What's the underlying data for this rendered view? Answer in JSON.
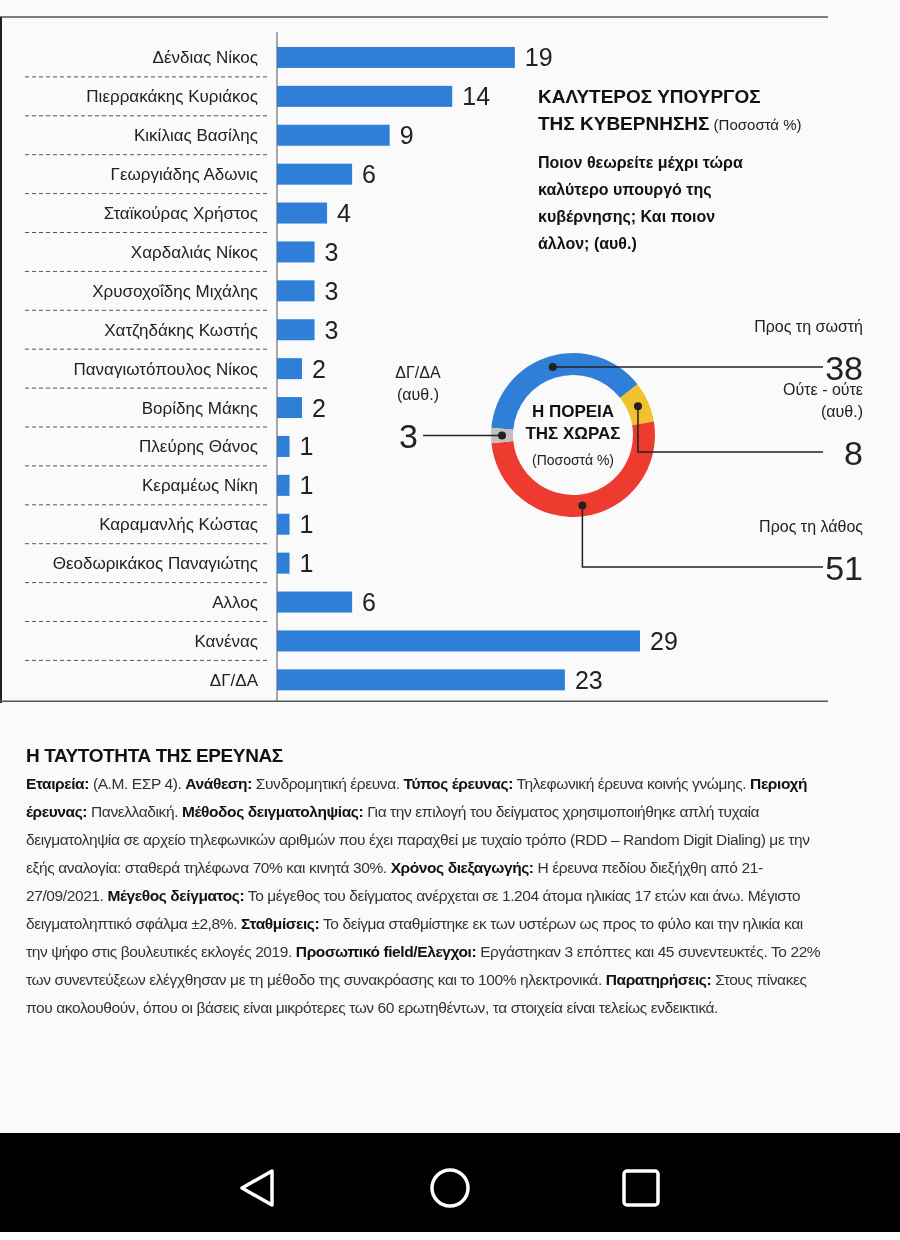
{
  "chart_data": [
    {
      "type": "bar",
      "orientation": "horizontal",
      "title": "ΚΑΛΥΤΕΡΟΣ ΥΠΟΥΡΓΟΣ ΤΗΣ ΚΥΒΕΡΝΗΣΗΣ (Ποσοστά %)",
      "annotations": [
        "Ποιον θεωρείτε μέχρι τώρα καλύτερο υπουργό της κυβέρνησης; Και ποιον άλλον; (αυθ.)"
      ],
      "categories": [
        "Δένδιας Νίκος",
        "Πιερρακάκης Κυριάκος",
        "Κικίλιας Βασίλης",
        "Γεωργιάδης Αδωνις",
        "Σταϊκούρας Χρήστος",
        "Χαρδαλιάς Νίκος",
        "Χρυσοχοΐδης Μιχάλης",
        "Χατζηδάκης Κωστής",
        "Παναγιωτόπουλος Νίκος",
        "Βορίδης Μάκης",
        "Πλεύρης Θάνος",
        "Κεραμέως Νίκη",
        "Καραμανλής Κώστας",
        "Θεοδωρικάκος Παναγιώτης",
        "Αλλος",
        "Κανένας",
        "ΔΓ/ΔΑ"
      ],
      "values": [
        19,
        14,
        9,
        6,
        4,
        3,
        3,
        3,
        2,
        2,
        1,
        1,
        1,
        1,
        6,
        29,
        23
      ],
      "color": "#2f7fd8",
      "data_labels": true
    },
    {
      "type": "donut",
      "title": "Η ΠΟΡΕΙΑ ΤΗΣ ΧΩΡΑΣ",
      "subtitle": "(Ποσοστά %)",
      "categories": [
        "Προς τη σωστή",
        "Ούτε - ούτε (αυθ.)",
        "Προς τη λάθος",
        "ΔΓ/ΔΑ (αυθ.)"
      ],
      "values": [
        38,
        8,
        51,
        3
      ],
      "colors": [
        "#2f7fd8",
        "#f2c12e",
        "#ee3b2f",
        "#c4c0bc"
      ],
      "data_labels": true
    },
    {
      "type": "other",
      "title": "Η ΤΑΥΤΟΤΗΤΑ ΤΗΣ ΕΡΕΥΝΑΣ",
      "annotations": [
        "Εταιρεία: (Α.Μ. ΕΣΡ 4).",
        "Ανάθεση: Συνδρομητική έρευνα.",
        "Τύπος έρευνας: Τηλεφωνική έρευνα κοινής γνώμης.",
        "Περιοχή έρευνας: Πανελλαδική.",
        "Μέθοδος δειγματοληψίας: Για την επιλογή του δείγματος χρησιμοποιήθηκε απλή τυχαία δειγματοληψία σε αρχείο τηλεφωνικών αριθμών που έχει παραχθεί με τυχαίο τρόπο (RDD – Random Digit Dialing) με την εξής αναλογία: σταθερά τηλέφωνα 70% και κινητά 30%.",
        "Χρόνος διεξαγωγής: Η έρευνα πεδίου διεξήχθη από 21-27/09/2021.",
        "Μέγεθος δείγματος: Το μέγεθος του δείγματος ανέρχεται σε 1.204 άτομα ηλικίας 17 ετών και άνω. Μέγιστο δειγματοληπτικό σφάλμα ±2,8%.",
        "Σταθμίσεις: Το δείγμα σταθμίστηκε εκ των υστέρων ως προς το φύλο και την ηλικία και την ψήφο στις βουλευτικές εκλογές 2019.",
        "Προσωπικό field/Ελεγχοι: Εργάστηκαν 3 επόπτες και 45 συνεντευκτές. Το 22% των συνεντεύξεων ελέγχθησαν με τη μέθοδο της συνακρόασης και το 100% ηλεκτρονικά.",
        "Παρατηρήσεις: Στους πίνακες που ακολουθούν, όπου οι βάσεις είναι μικρότερες των 60 ερωτηθέντων, τα στοιχεία είναι τελείως ενδεικτικά."
      ]
    }
  ]
}
